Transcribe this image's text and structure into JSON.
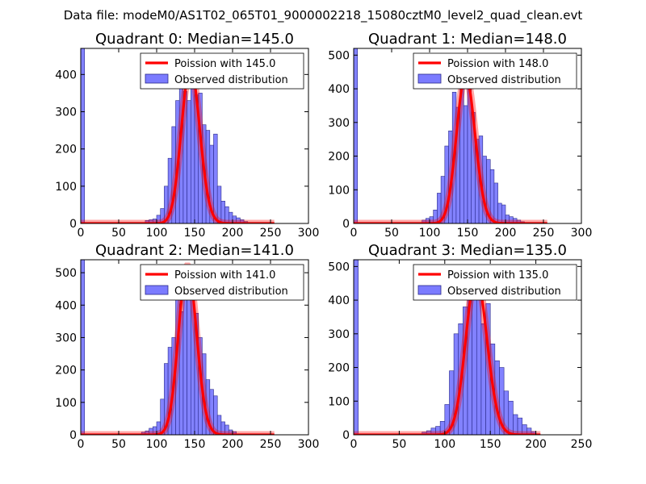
{
  "figure_title": "Data file: modeM0/AS1T02_065T01_9000002218_15080cztM0_level2_quad_clean.evt",
  "colors": {
    "bar_fill": "#7b7bff",
    "bar_edge": "#2a2a8a",
    "poisson_line": "#ff0000"
  },
  "chart_data": [
    {
      "type": "bar",
      "title": "Quadrant 0: Median=145.0",
      "xlim": [
        0,
        300
      ],
      "ylim": [
        0,
        470
      ],
      "xticks": [
        0,
        50,
        100,
        150,
        200,
        250,
        300
      ],
      "yticks": [
        0,
        100,
        200,
        300,
        400
      ],
      "median": 145.0,
      "bin_width": 5,
      "bins": [
        [
          0,
          470
        ],
        [
          85,
          8
        ],
        [
          90,
          10
        ],
        [
          95,
          12
        ],
        [
          100,
          22
        ],
        [
          105,
          40
        ],
        [
          110,
          100
        ],
        [
          115,
          175
        ],
        [
          120,
          260
        ],
        [
          125,
          330
        ],
        [
          130,
          420
        ],
        [
          135,
          355
        ],
        [
          140,
          330
        ],
        [
          145,
          380
        ],
        [
          150,
          345
        ],
        [
          155,
          350
        ],
        [
          160,
          265
        ],
        [
          165,
          250
        ],
        [
          170,
          210
        ],
        [
          175,
          240
        ],
        [
          180,
          100
        ],
        [
          185,
          60
        ],
        [
          190,
          45
        ],
        [
          195,
          30
        ],
        [
          200,
          20
        ],
        [
          205,
          15
        ],
        [
          210,
          10
        ],
        [
          215,
          5
        ]
      ],
      "legend": [
        "Poission with 145.0",
        "Observed distribution"
      ]
    },
    {
      "type": "bar",
      "title": "Quadrant 1: Median=148.0",
      "xlim": [
        0,
        300
      ],
      "ylim": [
        0,
        520
      ],
      "xticks": [
        0,
        50,
        100,
        150,
        200,
        250,
        300
      ],
      "yticks": [
        0,
        100,
        200,
        300,
        400,
        500
      ],
      "median": 148.0,
      "bin_width": 5,
      "bins": [
        [
          0,
          520
        ],
        [
          90,
          10
        ],
        [
          95,
          15
        ],
        [
          100,
          20
        ],
        [
          105,
          40
        ],
        [
          110,
          90
        ],
        [
          115,
          140
        ],
        [
          120,
          230
        ],
        [
          125,
          275
        ],
        [
          130,
          390
        ],
        [
          135,
          345
        ],
        [
          140,
          440
        ],
        [
          145,
          350
        ],
        [
          150,
          420
        ],
        [
          155,
          330
        ],
        [
          160,
          250
        ],
        [
          165,
          260
        ],
        [
          170,
          200
        ],
        [
          175,
          190
        ],
        [
          180,
          160
        ],
        [
          185,
          120
        ],
        [
          190,
          60
        ],
        [
          195,
          55
        ],
        [
          200,
          25
        ],
        [
          205,
          20
        ],
        [
          210,
          15
        ],
        [
          215,
          10
        ],
        [
          220,
          5
        ]
      ],
      "legend": [
        "Poission with 148.0",
        "Observed distribution"
      ]
    },
    {
      "type": "bar",
      "title": "Quadrant 2: Median=141.0",
      "xlim": [
        0,
        300
      ],
      "ylim": [
        0,
        540
      ],
      "xticks": [
        0,
        50,
        100,
        150,
        200,
        250,
        300
      ],
      "yticks": [
        0,
        100,
        200,
        300,
        400,
        500
      ],
      "median": 141.0,
      "bin_width": 5,
      "bins": [
        [
          0,
          540
        ],
        [
          80,
          8
        ],
        [
          85,
          12
        ],
        [
          90,
          20
        ],
        [
          95,
          25
        ],
        [
          100,
          40
        ],
        [
          105,
          110
        ],
        [
          110,
          220
        ],
        [
          115,
          270
        ],
        [
          120,
          300
        ],
        [
          125,
          425
        ],
        [
          130,
          380
        ],
        [
          135,
          430
        ],
        [
          140,
          450
        ],
        [
          145,
          520
        ],
        [
          150,
          375
        ],
        [
          155,
          300
        ],
        [
          160,
          250
        ],
        [
          165,
          170
        ],
        [
          170,
          140
        ],
        [
          175,
          120
        ],
        [
          180,
          60
        ],
        [
          185,
          40
        ],
        [
          190,
          30
        ],
        [
          195,
          15
        ],
        [
          200,
          10
        ]
      ],
      "legend": [
        "Poission with 141.0",
        "Observed distribution"
      ]
    },
    {
      "type": "bar",
      "title": "Quadrant 3: Median=135.0",
      "xlim": [
        0,
        250
      ],
      "ylim": [
        0,
        520
      ],
      "xticks": [
        0,
        50,
        100,
        150,
        200,
        250
      ],
      "yticks": [
        0,
        100,
        200,
        300,
        400,
        500
      ],
      "median": 135.0,
      "bin_width": 5,
      "bins": [
        [
          0,
          520
        ],
        [
          75,
          8
        ],
        [
          80,
          12
        ],
        [
          85,
          20
        ],
        [
          90,
          25
        ],
        [
          95,
          40
        ],
        [
          100,
          90
        ],
        [
          105,
          190
        ],
        [
          110,
          300
        ],
        [
          115,
          330
        ],
        [
          120,
          380
        ],
        [
          125,
          400
        ],
        [
          130,
          470
        ],
        [
          135,
          410
        ],
        [
          140,
          330
        ],
        [
          145,
          390
        ],
        [
          150,
          270
        ],
        [
          155,
          220
        ],
        [
          160,
          200
        ],
        [
          165,
          130
        ],
        [
          170,
          100
        ],
        [
          175,
          60
        ],
        [
          180,
          50
        ],
        [
          185,
          30
        ],
        [
          190,
          20
        ],
        [
          195,
          10
        ]
      ],
      "legend": [
        "Poission with 135.0",
        "Observed distribution"
      ]
    }
  ]
}
